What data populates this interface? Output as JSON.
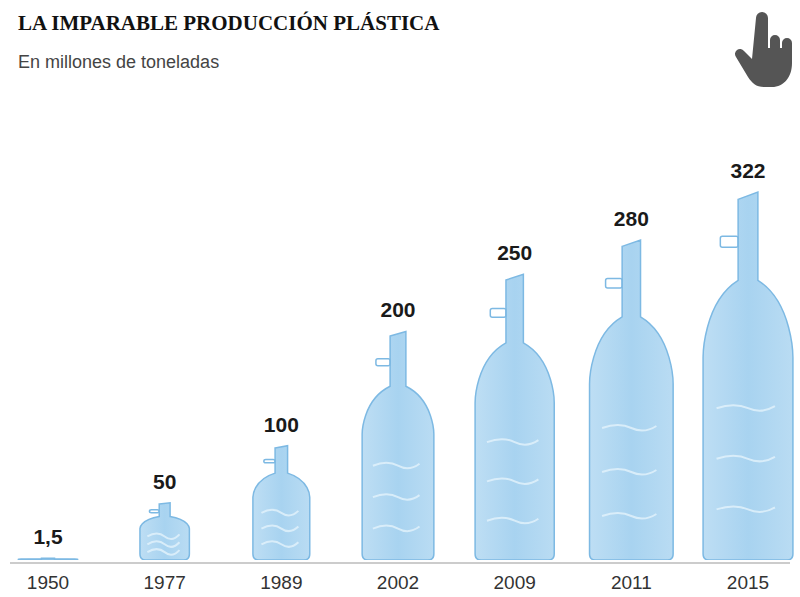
{
  "chart_data": {
    "type": "bar",
    "title": "LA IMPARABLE PRODUCCIÓN PLÁSTICA",
    "subtitle": "En millones de toneladas",
    "categories": [
      "1950",
      "1977",
      "1989",
      "2002",
      "2009",
      "2011",
      "2015"
    ],
    "values": [
      1.5,
      50,
      100,
      200,
      250,
      280,
      322
    ],
    "value_labels": [
      "1,5",
      "50",
      "100",
      "200",
      "250",
      "280",
      "322"
    ],
    "color": "#a8d3f0",
    "data_labels": true,
    "tick_labels": "x",
    "grid": false
  }
}
